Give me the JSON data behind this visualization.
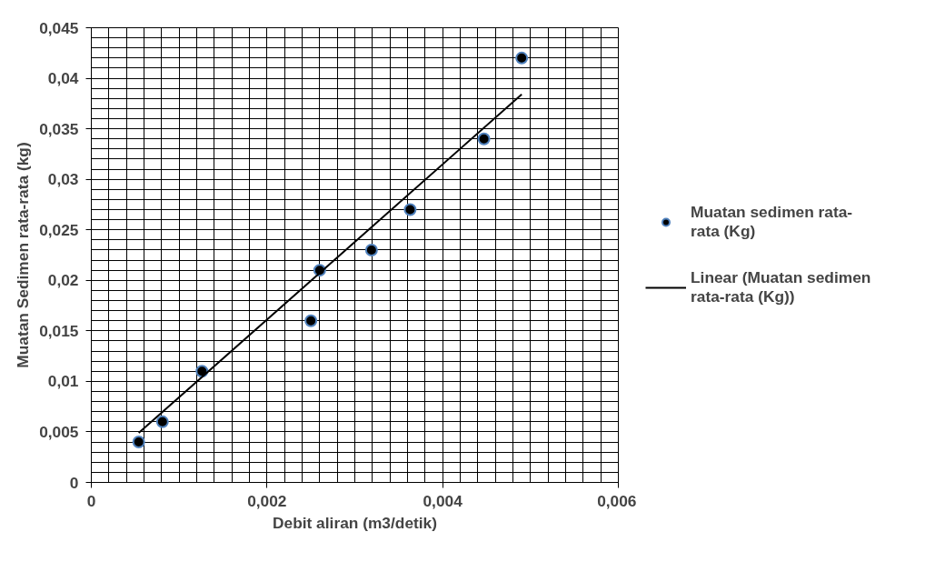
{
  "chart_data": {
    "type": "scatter",
    "xlabel": "Debit aliran (m3/detik)",
    "ylabel": "Muatan Sedimen rata-rata (kg)",
    "xlim": [
      0,
      0.006
    ],
    "ylim": [
      0,
      0.045
    ],
    "xticks": [
      {
        "value": 0,
        "label": "0"
      },
      {
        "value": 0.002,
        "label": "0,002"
      },
      {
        "value": 0.004,
        "label": "0,004"
      },
      {
        "value": 0.006,
        "label": "0,006"
      }
    ],
    "yticks": [
      {
        "value": 0,
        "label": "0"
      },
      {
        "value": 0.005,
        "label": "0,005"
      },
      {
        "value": 0.01,
        "label": "0,01"
      },
      {
        "value": 0.015,
        "label": "0,015"
      },
      {
        "value": 0.02,
        "label": "0,02"
      },
      {
        "value": 0.025,
        "label": "0,025"
      },
      {
        "value": 0.03,
        "label": "0,03"
      },
      {
        "value": 0.035,
        "label": "0,035"
      },
      {
        "value": 0.04,
        "label": "0,04"
      },
      {
        "value": 0.045,
        "label": "0,045"
      }
    ],
    "grid": true,
    "legend": "right",
    "marker": "circle",
    "series": [
      {
        "name": "Muatan sedimen rata-rata (Kg)",
        "color": "#000000",
        "x": [
          0.00054,
          0.00081,
          0.00126,
          0.0025,
          0.0026,
          0.00319,
          0.00363,
          0.00447,
          0.0049
        ],
        "values": [
          0.004,
          0.006,
          0.011,
          0.016,
          0.021,
          0.023,
          0.027,
          0.034,
          0.042
        ]
      },
      {
        "name": "Linear (Muatan sedimen rata-rata (Kg))",
        "type": "line",
        "marker": "none",
        "color": "#000000",
        "x": [
          0.00054,
          0.0049
        ],
        "values": [
          0.0049,
          0.0384
        ]
      }
    ]
  }
}
